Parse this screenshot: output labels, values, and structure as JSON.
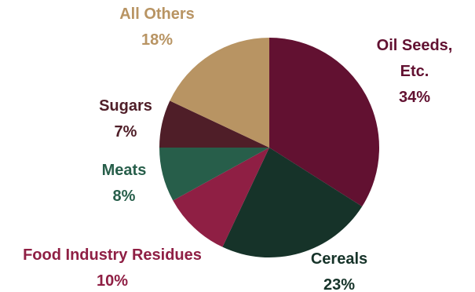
{
  "chart_data": {
    "type": "pie",
    "title": "",
    "start_angle_deg": 0,
    "direction": "clockwise",
    "slices": [
      {
        "label_lines": [
          "Oil Seeds,",
          "Etc."
        ],
        "value": 34,
        "value_label": "34%",
        "color": "#621131",
        "label_position": "right"
      },
      {
        "label_lines": [
          "Cereals"
        ],
        "value": 23,
        "value_label": "23%",
        "color": "#163329",
        "label_position": "bottom-right"
      },
      {
        "label_lines": [
          "Food Industry Residues"
        ],
        "value": 10,
        "value_label": "10%",
        "color": "#8f1f44",
        "label_position": "bottom-left"
      },
      {
        "label_lines": [
          "Meats"
        ],
        "value": 8,
        "value_label": "8%",
        "color": "#275e4a",
        "label_position": "left"
      },
      {
        "label_lines": [
          "Sugars"
        ],
        "value": 7,
        "value_label": "7%",
        "color": "#4f1e28",
        "label_position": "left"
      },
      {
        "label_lines": [
          "All Others"
        ],
        "value": 18,
        "value_label": "18%",
        "color": "#b89463",
        "label_position": "top-left"
      }
    ]
  }
}
